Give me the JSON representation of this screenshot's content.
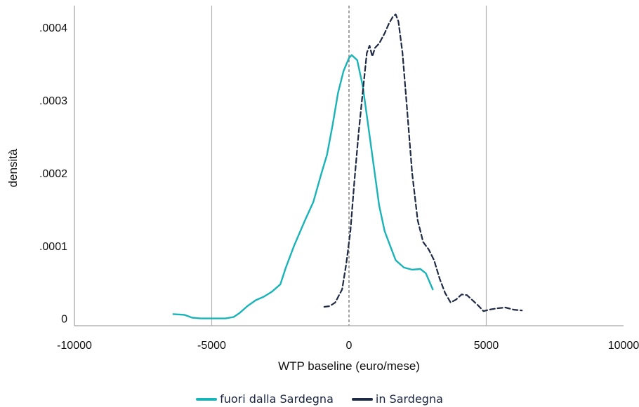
{
  "colors": {
    "outside": "#1ab3b8",
    "inside": "#1f2a44",
    "axis": "#a6a6a6",
    "grid": "#b3b3b3"
  },
  "chart_data": {
    "type": "line",
    "title": "",
    "xlabel": "WTP baseline (euro/mese)",
    "ylabel": "densità",
    "xlim": [
      -10000,
      10000
    ],
    "ylim": [
      -1e-05,
      0.00043
    ],
    "x_ticks": [
      {
        "value": -10000,
        "label": "-10000"
      },
      {
        "value": -5000,
        "label": "-5000"
      },
      {
        "value": 0,
        "label": "0"
      },
      {
        "value": 5000,
        "label": "5000"
      },
      {
        "value": 10000,
        "label": "10000"
      }
    ],
    "y_ticks": [
      {
        "value": 0,
        "label": "0"
      },
      {
        "value": 0.0001,
        "label": ".0001"
      },
      {
        "value": 0.0002,
        "label": ".0002"
      },
      {
        "value": 0.0003,
        "label": ".0003"
      },
      {
        "value": 0.0004,
        "label": ".0004"
      }
    ],
    "reference_lines": [
      {
        "x": -5000,
        "style": "solid"
      },
      {
        "x": 5000,
        "style": "solid"
      },
      {
        "x": 0,
        "style": "dashed"
      }
    ],
    "series": [
      {
        "name": "fuori dalla Sardegna",
        "style": "solid",
        "color": "#1ab3b8",
        "points": [
          [
            -6400,
            6e-06
          ],
          [
            -6000,
            5e-06
          ],
          [
            -5700,
            1e-06
          ],
          [
            -5400,
            0.0
          ],
          [
            -5000,
            0.0
          ],
          [
            -4500,
            0.0
          ],
          [
            -4200,
            2e-06
          ],
          [
            -4000,
            7e-06
          ],
          [
            -3700,
            1.7e-05
          ],
          [
            -3400,
            2.5e-05
          ],
          [
            -3100,
            3e-05
          ],
          [
            -2800,
            3.7e-05
          ],
          [
            -2500,
            4.7e-05
          ],
          [
            -2300,
            7e-05
          ],
          [
            -2000,
            0.0001
          ],
          [
            -1600,
            0.000135
          ],
          [
            -1300,
            0.00016
          ],
          [
            -1000,
            0.0002
          ],
          [
            -800,
            0.000225
          ],
          [
            -600,
            0.000265
          ],
          [
            -400,
            0.00031
          ],
          [
            -200,
            0.00034
          ],
          [
            0,
            0.000358
          ],
          [
            100,
            0.000362
          ],
          [
            300,
            0.000355
          ],
          [
            500,
            0.00032
          ],
          [
            700,
            0.000265
          ],
          [
            900,
            0.00021
          ],
          [
            1100,
            0.000155
          ],
          [
            1300,
            0.00012
          ],
          [
            1500,
            0.0001
          ],
          [
            1700,
            8e-05
          ],
          [
            2000,
            7e-05
          ],
          [
            2300,
            6.7e-05
          ],
          [
            2600,
            6.8e-05
          ],
          [
            2800,
            6.2e-05
          ],
          [
            3050,
            4e-05
          ]
        ]
      },
      {
        "name": "in Sardegna",
        "style": "dashed",
        "color": "#1f2a44",
        "points": [
          [
            -900,
            1.6e-05
          ],
          [
            -700,
            1.7e-05
          ],
          [
            -500,
            2.2e-05
          ],
          [
            -250,
            4e-05
          ],
          [
            -100,
            7.5e-05
          ],
          [
            50,
            0.00012
          ],
          [
            200,
            0.00019
          ],
          [
            350,
            0.000255
          ],
          [
            500,
            0.00031
          ],
          [
            650,
            0.000365
          ],
          [
            750,
            0.000375
          ],
          [
            850,
            0.00036
          ],
          [
            950,
            0.000372
          ],
          [
            1100,
            0.000378
          ],
          [
            1300,
            0.000392
          ],
          [
            1450,
            0.000405
          ],
          [
            1600,
            0.000415
          ],
          [
            1700,
            0.000418
          ],
          [
            1800,
            0.000408
          ],
          [
            1950,
            0.000365
          ],
          [
            2100,
            0.000295
          ],
          [
            2300,
            0.0002
          ],
          [
            2500,
            0.000135
          ],
          [
            2700,
            0.000105
          ],
          [
            2900,
            9.5e-05
          ],
          [
            3100,
            8e-05
          ],
          [
            3300,
            5.5e-05
          ],
          [
            3500,
            3.5e-05
          ],
          [
            3700,
            2.2e-05
          ],
          [
            3900,
            2.6e-05
          ],
          [
            4100,
            3.3e-05
          ],
          [
            4300,
            3.2e-05
          ],
          [
            4500,
            2.5e-05
          ],
          [
            4700,
            1.8e-05
          ],
          [
            4900,
            1e-05
          ],
          [
            5100,
            1.2e-05
          ],
          [
            5400,
            1.4e-05
          ],
          [
            5700,
            1.5e-05
          ],
          [
            6000,
            1.2e-05
          ],
          [
            6300,
            1.1e-05
          ]
        ]
      }
    ],
    "legend": {
      "position": "bottom"
    }
  }
}
